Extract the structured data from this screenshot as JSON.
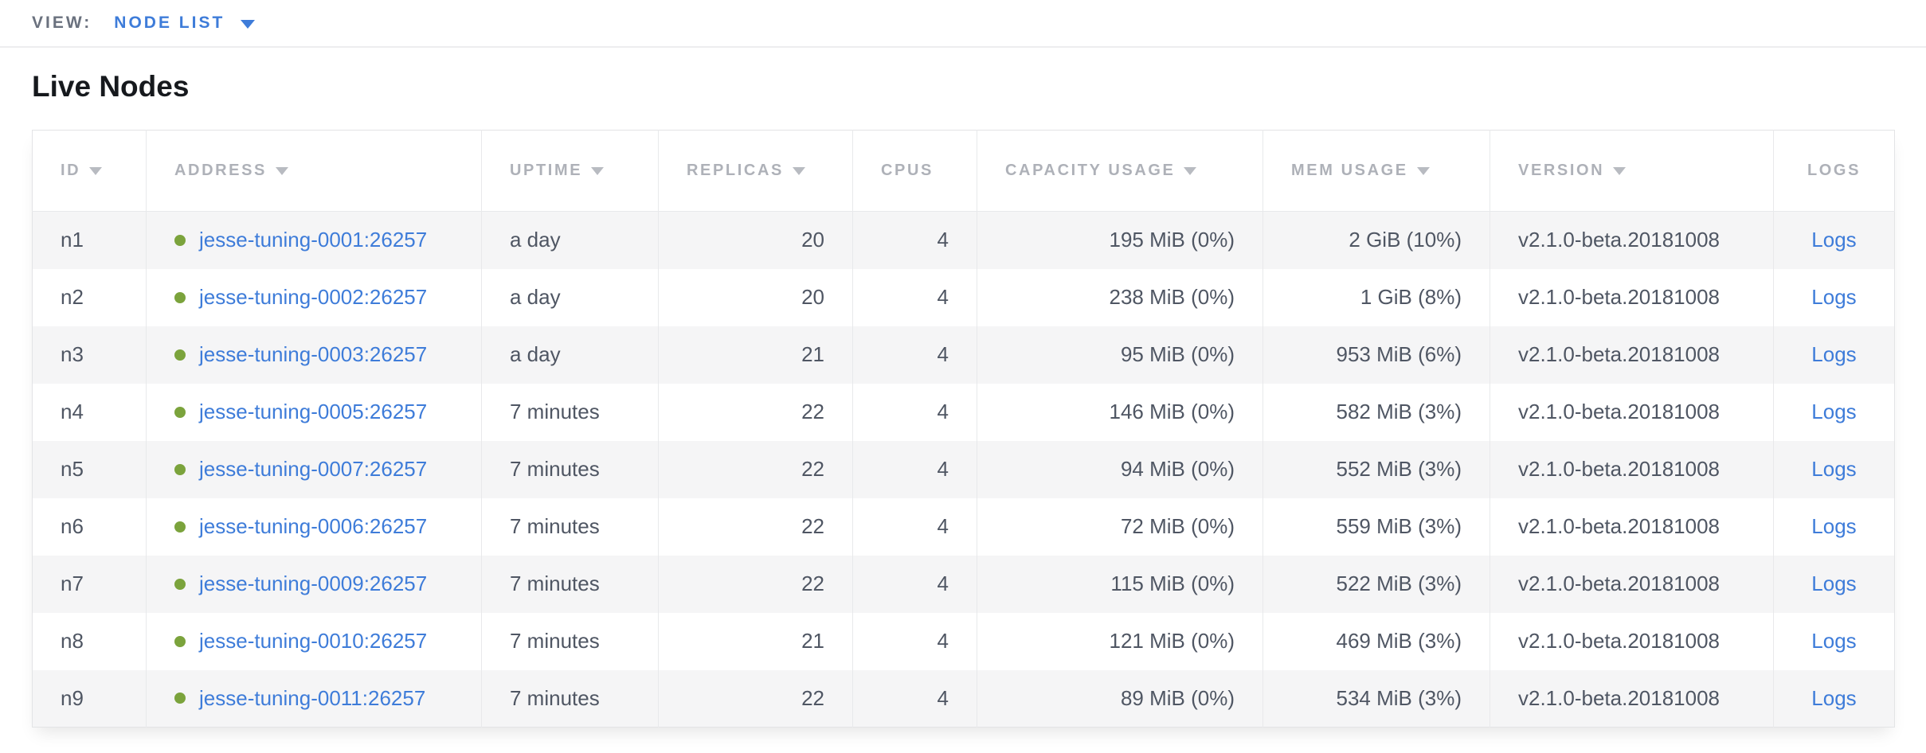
{
  "view_bar": {
    "label": "VIEW:",
    "selected_view": "NODE LIST",
    "dropdown_icon": "triangle-down",
    "accent_color": "#3e7cd9"
  },
  "page": {
    "title": "Live Nodes"
  },
  "icons": {
    "sort_desc": "triangle-down",
    "node_status_live": "green-dot"
  },
  "colors": {
    "link_blue": "#3e7cd9",
    "status_green": "#7ba33c",
    "header_gray": "#aeb1b8",
    "body_text": "#4f5663",
    "row_stripe": "#f5f5f6"
  },
  "table": {
    "columns": [
      {
        "key": "id",
        "label": "ID",
        "sortable": true
      },
      {
        "key": "address",
        "label": "ADDRESS",
        "sortable": true
      },
      {
        "key": "uptime",
        "label": "UPTIME",
        "sortable": true
      },
      {
        "key": "replicas",
        "label": "REPLICAS",
        "sortable": true
      },
      {
        "key": "cpus",
        "label": "CPUS",
        "sortable": false
      },
      {
        "key": "capacity_usage",
        "label": "CAPACITY USAGE",
        "sortable": true
      },
      {
        "key": "mem_usage",
        "label": "MEM USAGE",
        "sortable": true
      },
      {
        "key": "version",
        "label": "VERSION",
        "sortable": true
      },
      {
        "key": "logs",
        "label": "LOGS",
        "sortable": false
      }
    ],
    "rows": [
      {
        "id": "n1",
        "status": "live",
        "address": "jesse-tuning-0001:26257",
        "uptime": "a day",
        "replicas": "20",
        "cpus": "4",
        "capacity_usage": "195 MiB (0%)",
        "mem_usage": "2 GiB (10%)",
        "version": "v2.1.0-beta.20181008",
        "logs": "Logs"
      },
      {
        "id": "n2",
        "status": "live",
        "address": "jesse-tuning-0002:26257",
        "uptime": "a day",
        "replicas": "20",
        "cpus": "4",
        "capacity_usage": "238 MiB (0%)",
        "mem_usage": "1 GiB (8%)",
        "version": "v2.1.0-beta.20181008",
        "logs": "Logs"
      },
      {
        "id": "n3",
        "status": "live",
        "address": "jesse-tuning-0003:26257",
        "uptime": "a day",
        "replicas": "21",
        "cpus": "4",
        "capacity_usage": "95 MiB (0%)",
        "mem_usage": "953 MiB (6%)",
        "version": "v2.1.0-beta.20181008",
        "logs": "Logs"
      },
      {
        "id": "n4",
        "status": "live",
        "address": "jesse-tuning-0005:26257",
        "uptime": "7 minutes",
        "replicas": "22",
        "cpus": "4",
        "capacity_usage": "146 MiB (0%)",
        "mem_usage": "582 MiB (3%)",
        "version": "v2.1.0-beta.20181008",
        "logs": "Logs"
      },
      {
        "id": "n5",
        "status": "live",
        "address": "jesse-tuning-0007:26257",
        "uptime": "7 minutes",
        "replicas": "22",
        "cpus": "4",
        "capacity_usage": "94 MiB (0%)",
        "mem_usage": "552 MiB (3%)",
        "version": "v2.1.0-beta.20181008",
        "logs": "Logs"
      },
      {
        "id": "n6",
        "status": "live",
        "address": "jesse-tuning-0006:26257",
        "uptime": "7 minutes",
        "replicas": "22",
        "cpus": "4",
        "capacity_usage": "72 MiB (0%)",
        "mem_usage": "559 MiB (3%)",
        "version": "v2.1.0-beta.20181008",
        "logs": "Logs"
      },
      {
        "id": "n7",
        "status": "live",
        "address": "jesse-tuning-0009:26257",
        "uptime": "7 minutes",
        "replicas": "22",
        "cpus": "4",
        "capacity_usage": "115 MiB (0%)",
        "mem_usage": "522 MiB (3%)",
        "version": "v2.1.0-beta.20181008",
        "logs": "Logs"
      },
      {
        "id": "n8",
        "status": "live",
        "address": "jesse-tuning-0010:26257",
        "uptime": "7 minutes",
        "replicas": "21",
        "cpus": "4",
        "capacity_usage": "121 MiB (0%)",
        "mem_usage": "469 MiB (3%)",
        "version": "v2.1.0-beta.20181008",
        "logs": "Logs"
      },
      {
        "id": "n9",
        "status": "live",
        "address": "jesse-tuning-0011:26257",
        "uptime": "7 minutes",
        "replicas": "22",
        "cpus": "4",
        "capacity_usage": "89 MiB (0%)",
        "mem_usage": "534 MiB (3%)",
        "version": "v2.1.0-beta.20181008",
        "logs": "Logs"
      }
    ]
  }
}
